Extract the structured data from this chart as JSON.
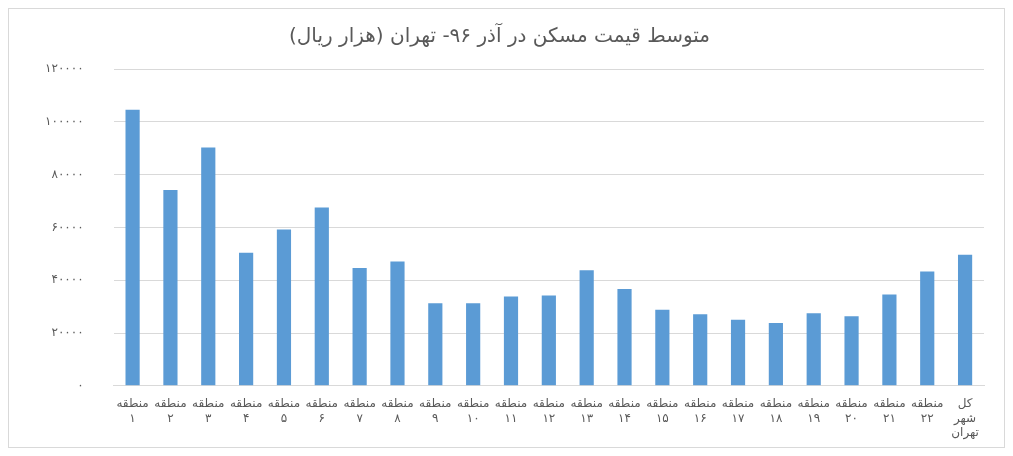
{
  "chart_data": {
    "type": "bar",
    "title": "متوسط قیمت مسکن در آذر ۹۶- تهران (هزار ریال)",
    "categories": [
      "منطقه ۱",
      "منطقه ۲",
      "منطقه ۳",
      "منطقه ۴",
      "منطقه ۵",
      "منطقه ۶",
      "منطقه ۷",
      "منطقه ۸",
      "منطقه ۹",
      "منطقه ۱۰",
      "منطقه ۱۱",
      "منطقه ۱۲",
      "منطقه ۱۳",
      "منطقه ۱۴",
      "منطقه ۱۵",
      "منطقه ۱۶",
      "منطقه ۱۷",
      "منطقه ۱۸",
      "منطقه ۱۹",
      "منطقه ۲۰",
      "منطقه ۲۱",
      "منطقه ۲۲",
      "کل شهر تهران"
    ],
    "values": [
      104600,
      74200,
      90300,
      50400,
      59200,
      67500,
      44600,
      47100,
      31300,
      31300,
      33800,
      34200,
      43800,
      36700,
      28800,
      27100,
      25000,
      23800,
      27500,
      26300,
      34600,
      43300,
      49600
    ],
    "color": "#5b9bd5",
    "ylim": [
      0,
      120000
    ],
    "yticks": [
      {
        "value": 0,
        "label": "۰"
      },
      {
        "value": 20000,
        "label": "۲۰۰۰۰"
      },
      {
        "value": 40000,
        "label": "۴۰۰۰۰"
      },
      {
        "value": 60000,
        "label": "۶۰۰۰۰"
      },
      {
        "value": 80000,
        "label": "۸۰۰۰۰"
      },
      {
        "value": 100000,
        "label": "۱۰۰۰۰۰"
      },
      {
        "value": 120000,
        "label": "۱۲۰۰۰۰"
      }
    ],
    "grid": "y",
    "legend": false
  }
}
